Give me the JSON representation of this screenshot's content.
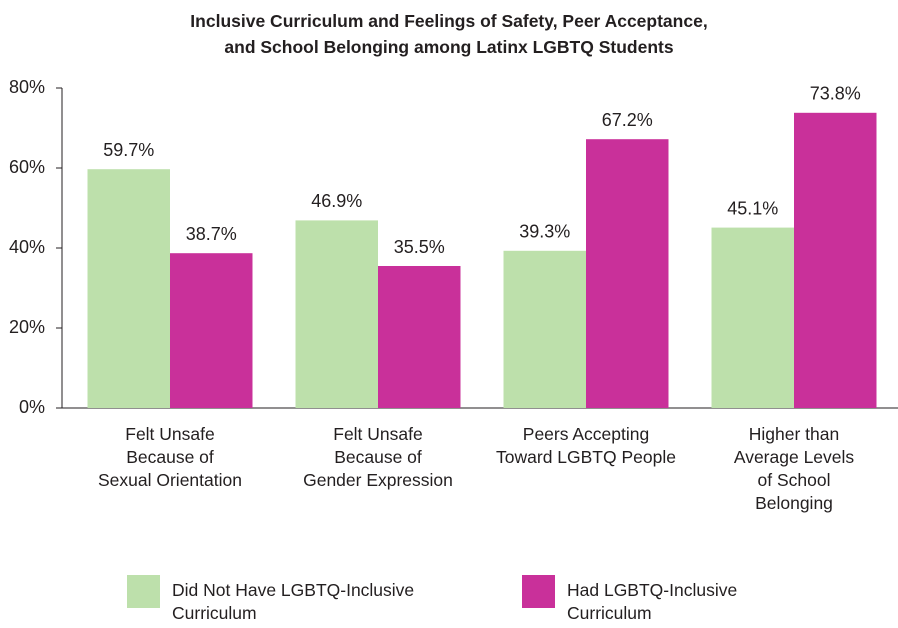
{
  "chart_data": {
    "type": "bar",
    "title": "Inclusive Curriculum and Feelings of Safety, Peer Acceptance,\nand School Belonging among Latinx LGBTQ Students",
    "categories": [
      "Felt Unsafe\nBecause of\nSexual Orientation",
      "Felt Unsafe\nBecause of\nGender Expression",
      "Peers Accepting\nToward LGBTQ People",
      "Higher than\nAverage Levels\nof School\nBelonging"
    ],
    "series": [
      {
        "name": "Did Not Have LGBTQ-Inclusive\nCurriculum",
        "color": "#bde0ab",
        "values": [
          59.7,
          46.9,
          39.3,
          45.1
        ],
        "value_labels": [
          "59.7%",
          "46.9%",
          "39.3%",
          "45.1%"
        ]
      },
      {
        "name": "Had LGBTQ-Inclusive\nCurriculum",
        "color": "#c9309a",
        "values": [
          38.7,
          35.5,
          67.2,
          73.8
        ],
        "value_labels": [
          "38.7%",
          "35.5%",
          "67.2%",
          "73.8%"
        ]
      }
    ],
    "ylim": [
      0,
      80
    ],
    "yticks": [
      {
        "value": 0,
        "label": "0%"
      },
      {
        "value": 20,
        "label": "20%"
      },
      {
        "value": 40,
        "label": "40%"
      },
      {
        "value": 60,
        "label": "60%"
      },
      {
        "value": 80,
        "label": "80%"
      }
    ],
    "legend": "bottom"
  }
}
